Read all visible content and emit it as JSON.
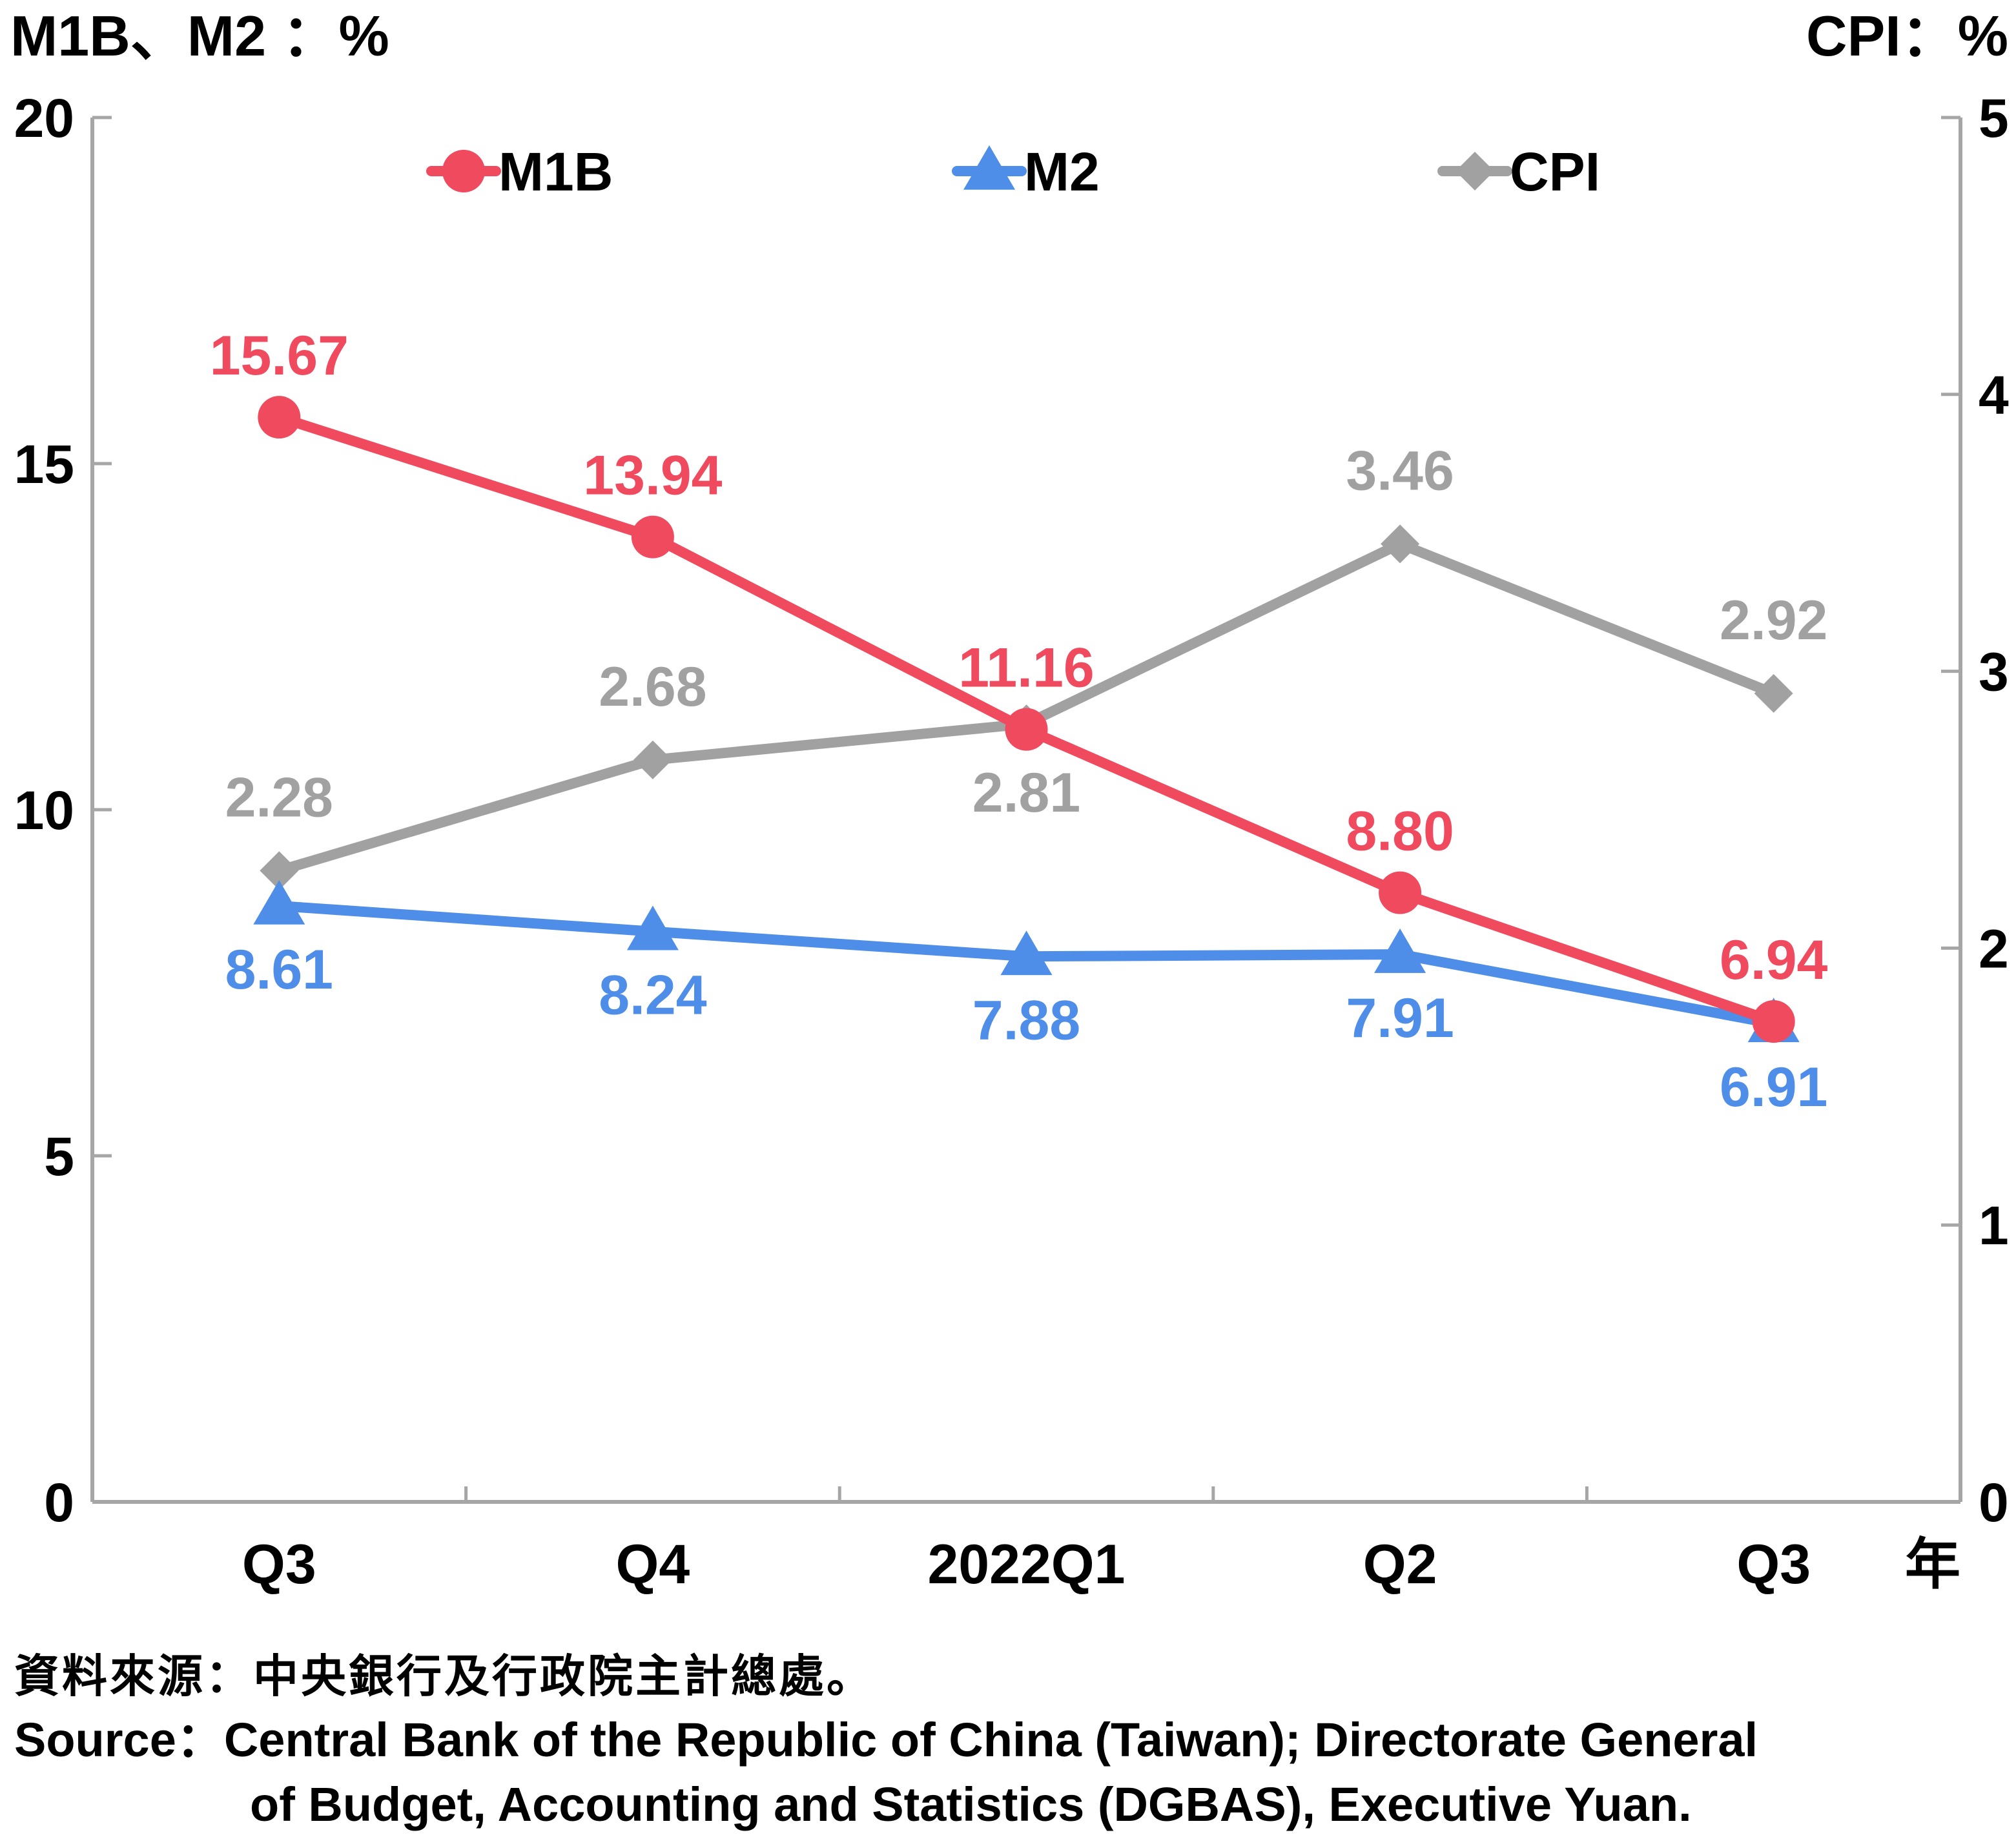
{
  "chart_data": {
    "type": "line",
    "categories": [
      "Q3",
      "Q4",
      "2022Q1",
      "Q2",
      "Q3"
    ],
    "x_unit_label": "年",
    "left_axis": {
      "title": "M1B、M2 ：%",
      "ylim": [
        0,
        20
      ],
      "ticks": [
        "0",
        "5",
        "10",
        "15",
        "20"
      ]
    },
    "right_axis": {
      "title": "CPI：%",
      "ylim": [
        0,
        5
      ],
      "ticks": [
        "0",
        "1",
        "2",
        "3",
        "4",
        "5"
      ]
    },
    "series": [
      {
        "name": "M1B",
        "axis": "left",
        "color": "#f04a5f",
        "marker": "circle",
        "values": [
          15.67,
          13.94,
          11.16,
          8.8,
          6.94
        ],
        "labels": [
          "15.67",
          "13.94",
          "11.16",
          "8.80",
          "6.94"
        ]
      },
      {
        "name": "M2",
        "axis": "left",
        "color": "#4e8de8",
        "marker": "triangle",
        "values": [
          8.61,
          8.24,
          7.88,
          7.91,
          6.91
        ],
        "labels": [
          "8.61",
          "8.24",
          "7.88",
          "7.91",
          "6.91"
        ]
      },
      {
        "name": "CPI",
        "axis": "right",
        "color": "#a1a1a1",
        "marker": "diamond",
        "values": [
          2.28,
          2.68,
          2.81,
          3.46,
          2.92
        ],
        "labels": [
          "2.28",
          "2.68",
          "2.81",
          "3.46",
          "2.92"
        ]
      }
    ],
    "legend_position": "top",
    "grid": false
  },
  "source": {
    "cn": "資料來源：中央銀行及行政院主計總處。",
    "en_line1": "Source：Central Bank of the Republic of China (Taiwan); Directorate General",
    "en_line2": "of Budget, Accounting and Statistics (DGBAS), Executive Yuan."
  }
}
